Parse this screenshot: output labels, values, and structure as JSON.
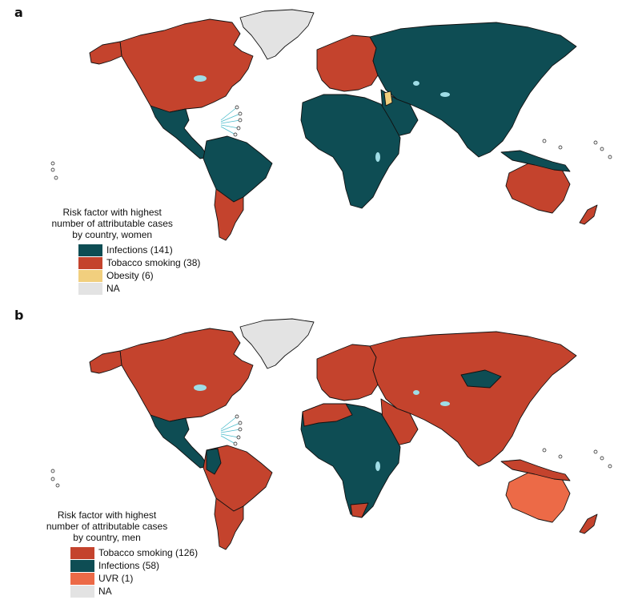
{
  "colors": {
    "infections": "#0e4d54",
    "tobacco": "#c4432d",
    "obesity": "#f1cf7e",
    "uvr": "#ec6a47",
    "na": "#e3e3e3",
    "lakes": "#9fdde6"
  },
  "panels": [
    {
      "letter": "a",
      "legend_title_lines": [
        "Risk factor with highest",
        "number of attributable cases",
        "by country, women"
      ],
      "legend": [
        {
          "label": "Infections (141)",
          "color_key": "infections"
        },
        {
          "label": "Tobacco smoking (38)",
          "color_key": "tobacco"
        },
        {
          "label": "Obesity (6)",
          "color_key": "obesity"
        },
        {
          "label": "NA",
          "color_key": "na"
        }
      ]
    },
    {
      "letter": "b",
      "legend_title_lines": [
        "Risk factor with highest",
        "number of attributable cases",
        "by country, men"
      ],
      "legend": [
        {
          "label": "Tobacco smoking (126)",
          "color_key": "tobacco"
        },
        {
          "label": "Infections (58)",
          "color_key": "infections"
        },
        {
          "label": "UVR (1)",
          "color_key": "uvr"
        },
        {
          "label": "NA",
          "color_key": "na"
        }
      ]
    }
  ]
}
